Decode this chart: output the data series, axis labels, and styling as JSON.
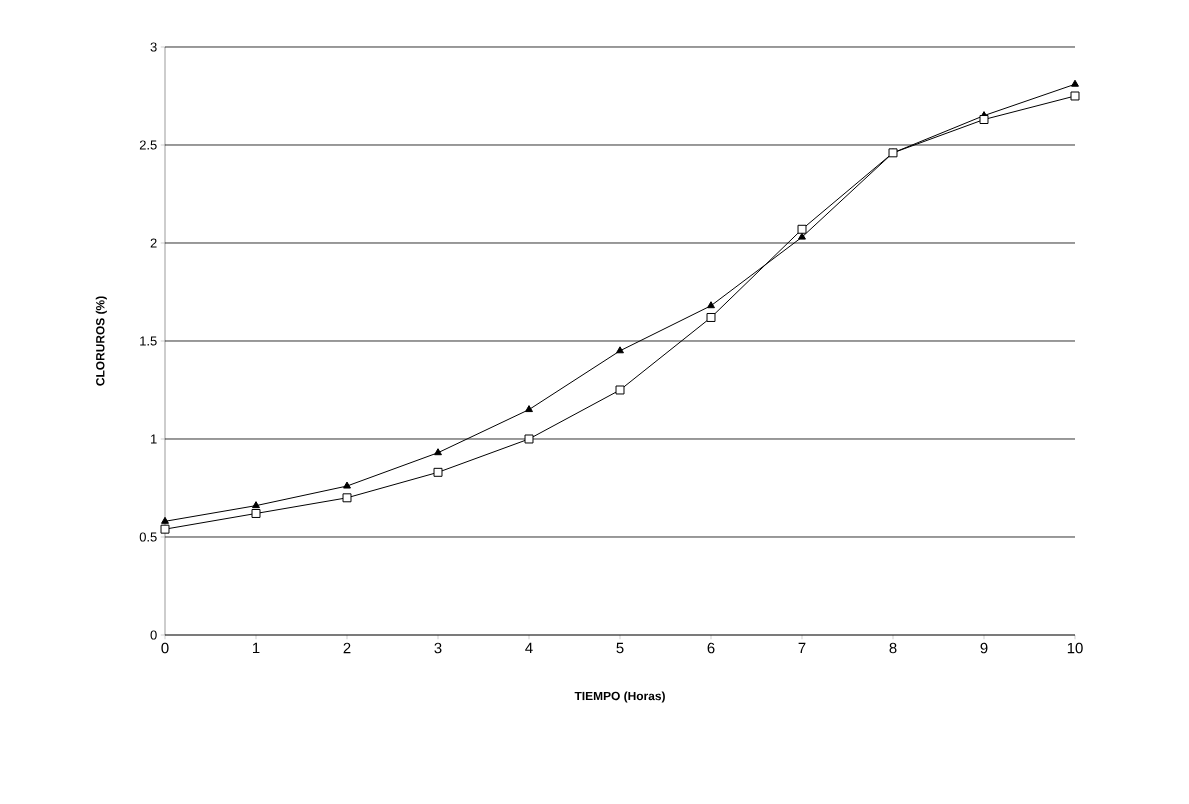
{
  "chart_data": {
    "type": "line",
    "xlabel": "TIEMPO (Horas)",
    "ylabel": "CLORUROS (%)",
    "x": [
      0,
      1,
      2,
      3,
      4,
      5,
      6,
      7,
      8,
      9,
      10
    ],
    "series": [
      {
        "color": "#000000",
        "marker": "triangle",
        "values": [
          0.58,
          0.66,
          0.76,
          0.93,
          1.15,
          1.45,
          1.68,
          2.03,
          2.46,
          2.65,
          2.81
        ]
      },
      {
        "color": "#000000",
        "marker": "square",
        "values": [
          0.54,
          0.62,
          0.7,
          0.83,
          1.0,
          1.25,
          1.62,
          2.07,
          2.46,
          2.63,
          2.75
        ]
      }
    ],
    "xlim": [
      0,
      10
    ],
    "xticks": [
      0,
      1,
      2,
      3,
      4,
      5,
      6,
      7,
      8,
      9,
      10
    ],
    "ylim": [
      0,
      3
    ],
    "yticks": [
      0,
      0.5,
      1,
      1.5,
      2,
      2.5,
      3
    ],
    "grid": "y",
    "line_style": "solid"
  }
}
